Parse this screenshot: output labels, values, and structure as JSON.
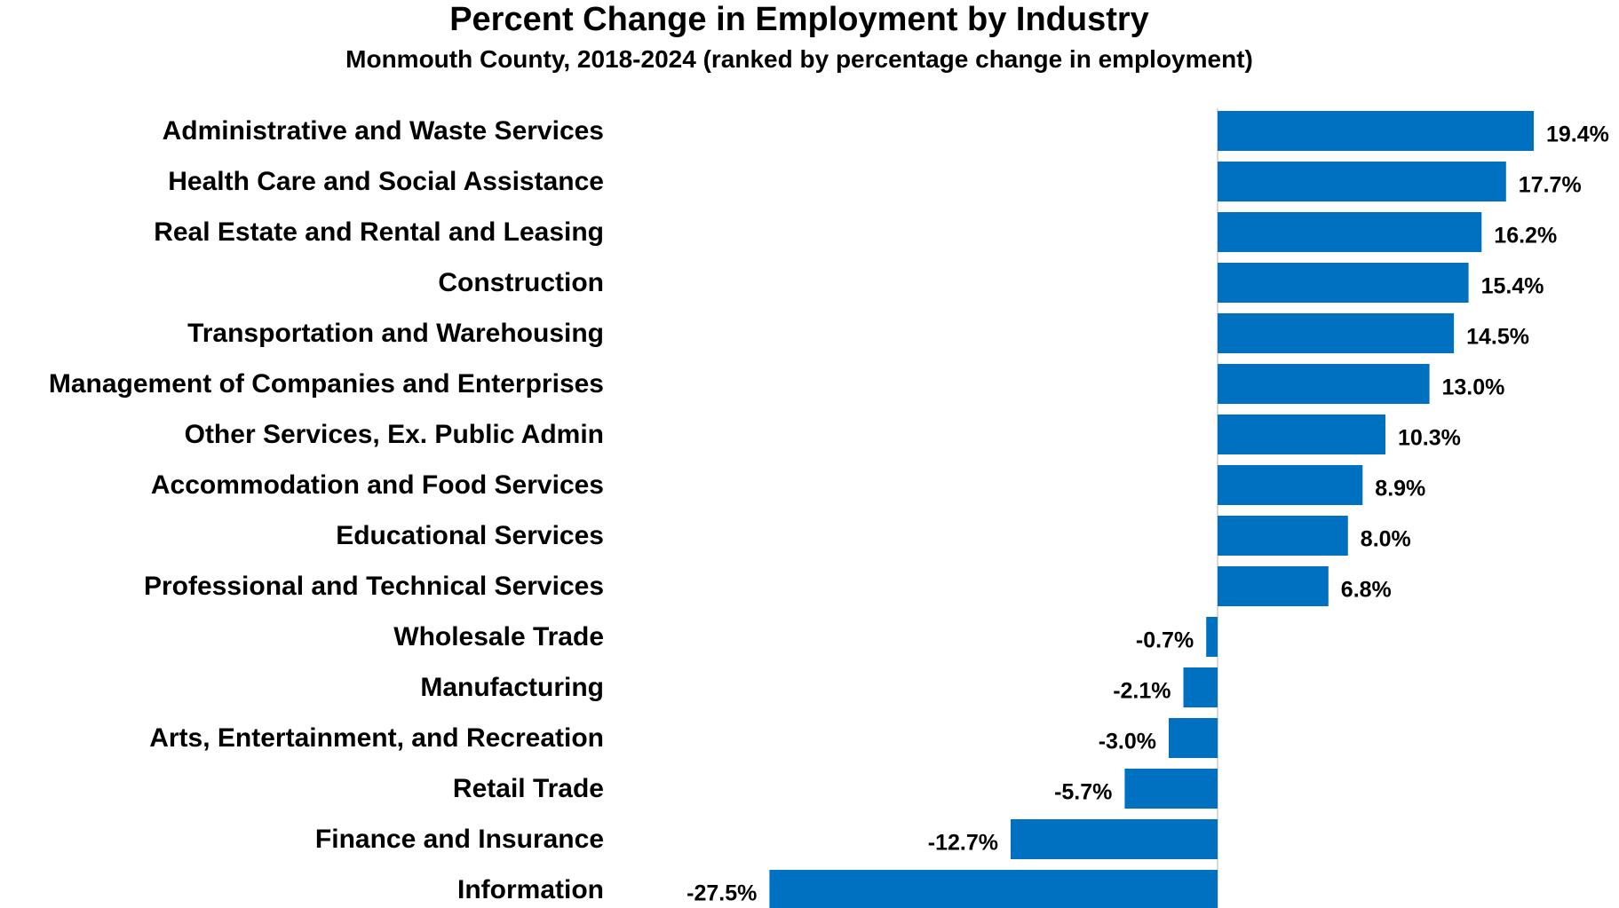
{
  "chart_data": {
    "type": "bar",
    "orientation": "horizontal",
    "title": "Percent Change in Employment by Industry",
    "subtitle": "Monmouth County, 2018-2024 (ranked by percentage change in employment)",
    "categories": [
      "Administrative and Waste Services",
      "Health Care and Social Assistance",
      "Real Estate and Rental and Leasing",
      "Construction",
      "Transportation and Warehousing",
      "Management of Companies and Enterprises",
      "Other Services, Ex. Public Admin",
      "Accommodation and Food Services",
      "Educational Services",
      "Professional and Technical Services",
      "Wholesale Trade",
      "Manufacturing",
      "Arts, Entertainment, and Recreation",
      "Retail Trade",
      "Finance and Insurance",
      "Information"
    ],
    "values": [
      19.4,
      17.7,
      16.2,
      15.4,
      14.5,
      13.0,
      10.3,
      8.9,
      8.0,
      6.8,
      -0.7,
      -2.1,
      -3.0,
      -5.7,
      -12.7,
      -27.5
    ],
    "data_labels": [
      "19.4%",
      "17.7%",
      "16.2%",
      "15.4%",
      "14.5%",
      "13.0%",
      "10.3%",
      "8.9%",
      "8.0%",
      "6.8%",
      "-0.7%",
      "-2.1%",
      "-3.0%",
      "-5.7%",
      "-12.7%",
      "-27.5%"
    ],
    "xlim": [
      -27.5,
      19.4
    ],
    "grid": false,
    "legend": "none",
    "bar_color": "#0070C0",
    "axis_color": "#D9D9D9"
  }
}
